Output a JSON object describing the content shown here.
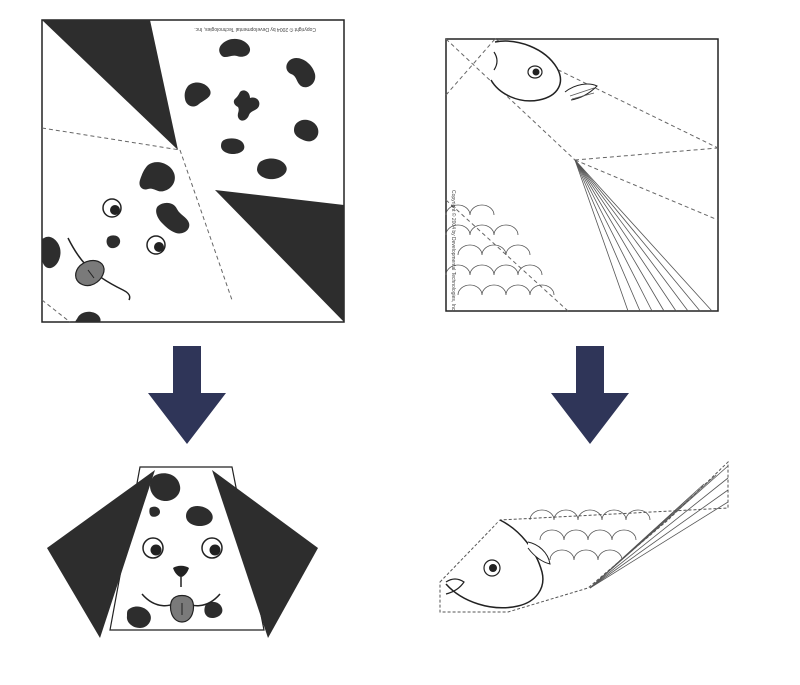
{
  "figure": {
    "panels": [
      {
        "name": "dog-origami-paper-sheet",
        "state": "unfolded"
      },
      {
        "name": "fish-origami-paper-sheet",
        "state": "unfolded"
      },
      {
        "name": "origami-dog-head",
        "state": "folded"
      },
      {
        "name": "origami-fish",
        "state": "folded"
      }
    ],
    "arrow_color": "#2f3558",
    "dark_fill": "#2d2d2d",
    "tongue_color": "#7a7a7a"
  },
  "credits": {
    "dog_sheet": "Copyright © 2004 by Developmental Technologies, Inc.",
    "fish_sheet": "Copyright © 2004 by Developmental Technologies, Inc."
  }
}
